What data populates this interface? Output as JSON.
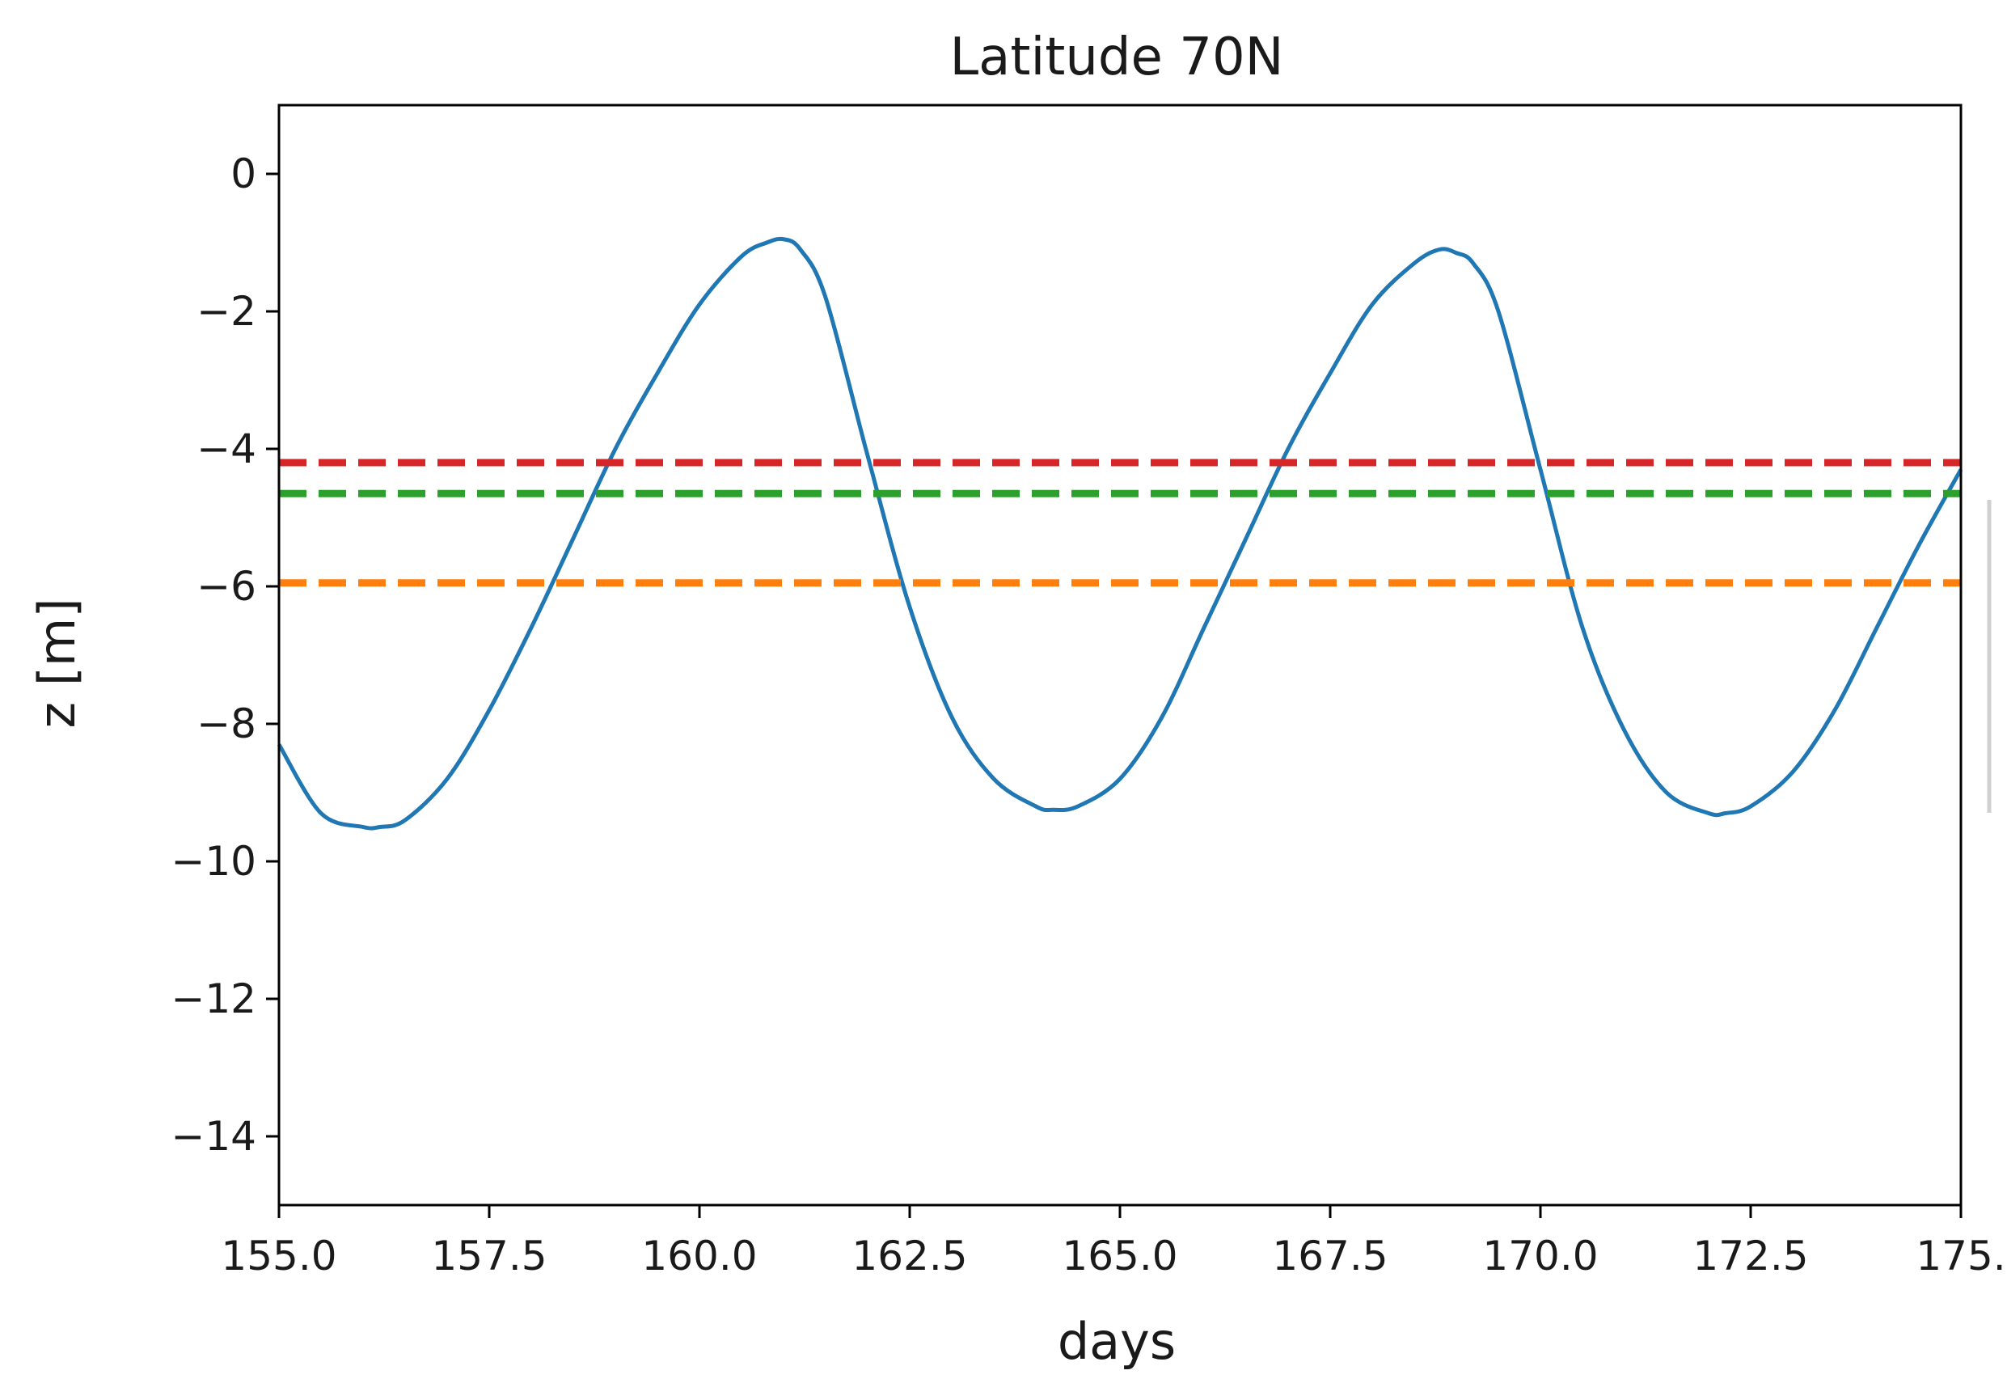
{
  "chart_data": {
    "type": "line",
    "title": "Latitude 70N",
    "xlabel": "days",
    "ylabel": "z [m]",
    "xlim": [
      155.0,
      175.0
    ],
    "ylim": [
      -15.0,
      1.0
    ],
    "grid": false,
    "x_ticks": [
      155.0,
      157.5,
      160.0,
      162.5,
      165.0,
      167.5,
      170.0,
      172.5,
      175.0
    ],
    "x_tick_labels": [
      "155.0",
      "157.5",
      "160.0",
      "162.5",
      "165.0",
      "167.5",
      "170.0",
      "172.5",
      "175."
    ],
    "y_ticks": [
      0,
      -2,
      -4,
      -6,
      -8,
      -10,
      -12,
      -14
    ],
    "y_tick_labels": [
      "0",
      "−2",
      "−4",
      "−6",
      "−8",
      "−10",
      "−12",
      "−14"
    ],
    "series": [
      {
        "color": "#1f77b4",
        "style": "solid",
        "x": [
          155.0,
          155.5,
          156.0,
          156.2,
          156.5,
          157.0,
          157.5,
          158.0,
          158.5,
          159.0,
          159.5,
          160.0,
          160.5,
          160.8,
          161.0,
          161.2,
          161.5,
          162.0,
          162.5,
          163.0,
          163.5,
          164.0,
          164.2,
          164.5,
          165.0,
          165.5,
          166.0,
          166.5,
          167.0,
          167.5,
          168.0,
          168.5,
          168.8,
          169.0,
          169.2,
          169.5,
          170.0,
          170.5,
          171.0,
          171.5,
          172.0,
          172.2,
          172.5,
          173.0,
          173.5,
          174.0,
          174.5,
          175.0
        ],
        "y": [
          -8.3,
          -9.3,
          -9.5,
          -9.5,
          -9.4,
          -8.8,
          -7.8,
          -6.6,
          -5.3,
          -4.0,
          -2.9,
          -1.9,
          -1.2,
          -1.0,
          -0.95,
          -1.1,
          -1.8,
          -4.1,
          -6.3,
          -7.9,
          -8.8,
          -9.2,
          -9.25,
          -9.2,
          -8.8,
          -7.9,
          -6.6,
          -5.3,
          -4.0,
          -2.9,
          -1.9,
          -1.3,
          -1.1,
          -1.15,
          -1.3,
          -2.0,
          -4.3,
          -6.6,
          -8.1,
          -9.0,
          -9.3,
          -9.3,
          -9.2,
          -8.7,
          -7.8,
          -6.6,
          -5.4,
          -4.3
        ]
      },
      {
        "color": "#d62728",
        "style": "dashed",
        "x": [
          155.0,
          175.0
        ],
        "y": [
          -4.2,
          -4.2
        ]
      },
      {
        "color": "#2ca02c",
        "style": "dashed",
        "x": [
          155.0,
          175.0
        ],
        "y": [
          -4.65,
          -4.65
        ]
      },
      {
        "color": "#ff7f0e",
        "style": "dashed",
        "x": [
          155.0,
          175.0
        ],
        "y": [
          -5.95,
          -5.95
        ]
      }
    ]
  }
}
